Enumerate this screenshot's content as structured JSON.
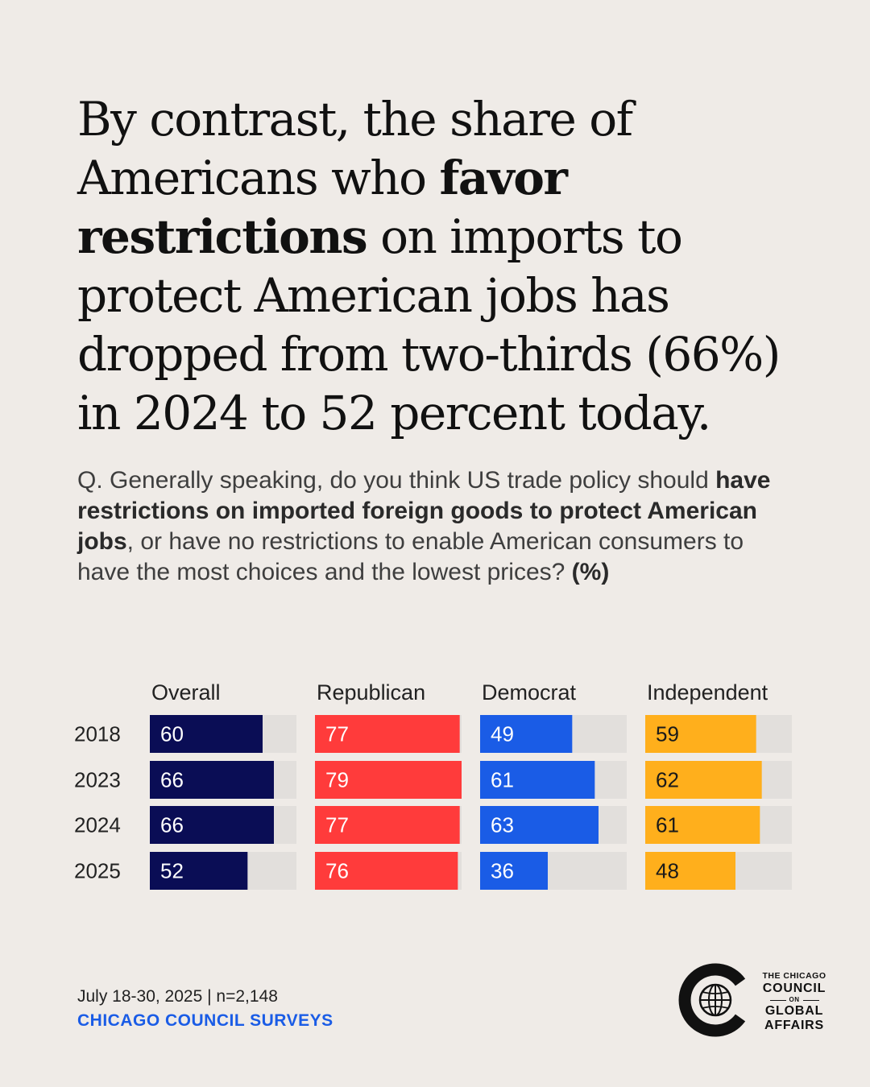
{
  "headline": {
    "part1": "By contrast, the share of Americans who ",
    "bold": "favor restrictions",
    "part2": " on imports to protect American jobs has dropped from two-thirds (66%) in 2024 to 52 percent today."
  },
  "question": {
    "part1": "Q. Generally speaking, do you think US trade policy should ",
    "bold": "have restrictions on imported foreign goods to protect American jobs",
    "part2": ", or have no restrictions to enable American consumers to have the most choices and the lowest prices? ",
    "unit": "(%)"
  },
  "chart_data": {
    "type": "bar",
    "orientation": "horizontal",
    "layout": "small-multiples",
    "categories": [
      "2018",
      "2023",
      "2024",
      "2025"
    ],
    "series": [
      {
        "name": "Overall",
        "values": [
          60,
          66,
          66,
          52
        ],
        "color": "#0a0d55"
      },
      {
        "name": "Republican",
        "values": [
          77,
          79,
          77,
          76
        ],
        "color": "#ff3b3b"
      },
      {
        "name": "Democrat",
        "values": [
          49,
          61,
          63,
          36
        ],
        "color": "#1a5ce6"
      },
      {
        "name": "Independent",
        "values": [
          59,
          62,
          61,
          48
        ],
        "color": "#ffaf1c"
      }
    ],
    "xlim": [
      0,
      78
    ],
    "track_color": "#e2dfdc",
    "unit": "%"
  },
  "footer": {
    "meta": "July 18-30, 2025 | n=2,148",
    "source": "CHICAGO COUNCIL SURVEYS"
  },
  "logo": {
    "line1": "THE CHICAGO",
    "line2": "COUNCIL",
    "line3": "ON",
    "line4": "GLOBAL",
    "line5": "AFFAIRS"
  }
}
